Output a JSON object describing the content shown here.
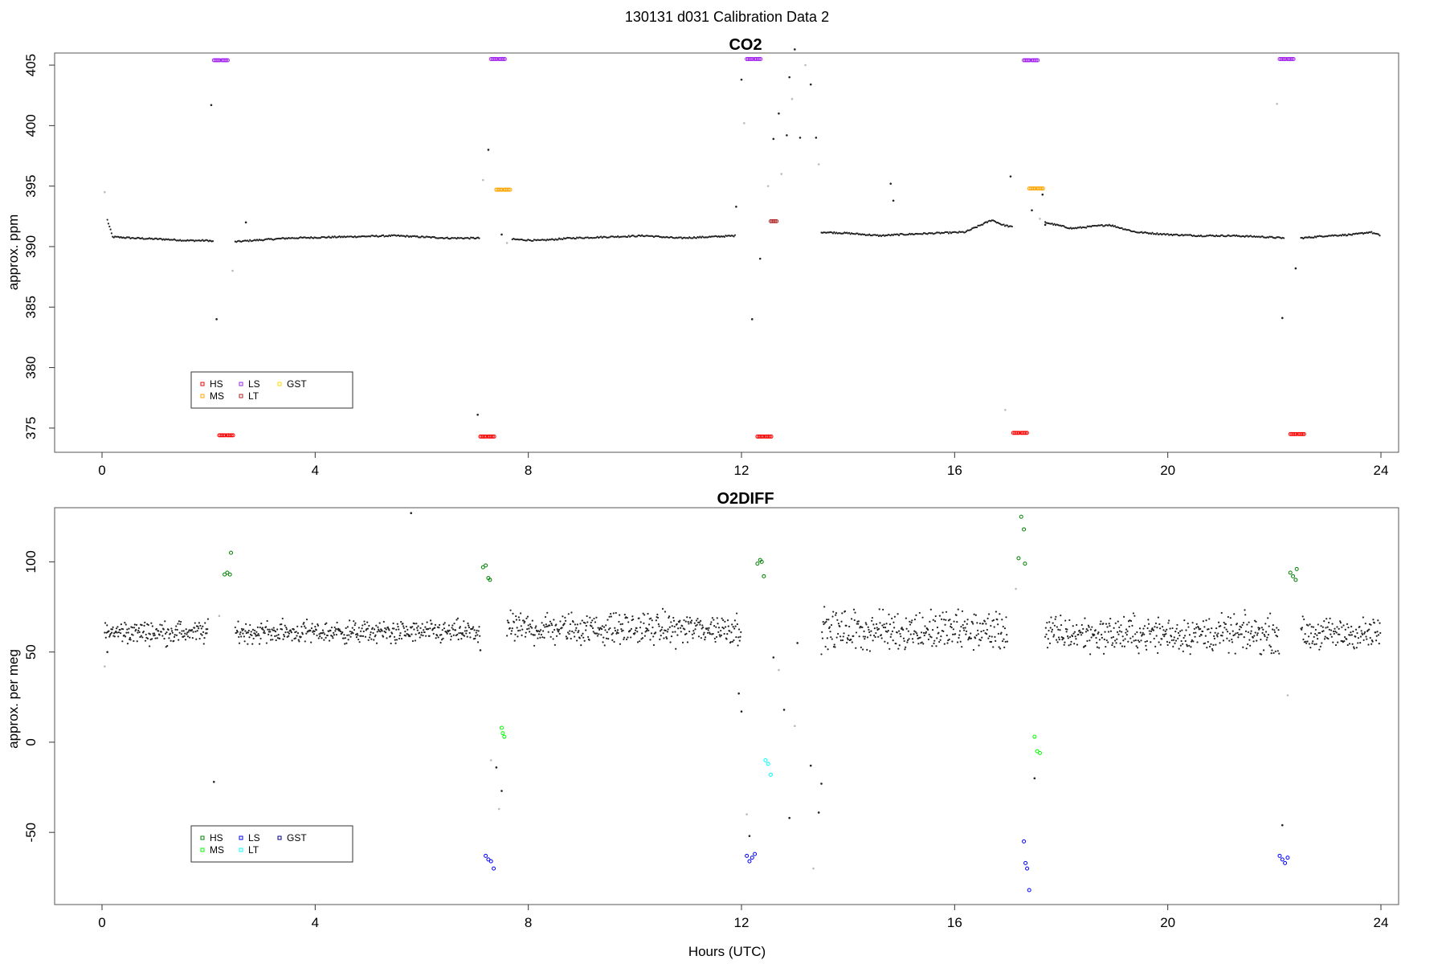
{
  "figure": {
    "title": "130131   d031   Calibration Data 2",
    "xlabel": "Hours (UTC)",
    "xlim": [
      0,
      24
    ],
    "xticks": [
      0,
      4,
      8,
      12,
      16,
      20,
      24
    ]
  },
  "colors": {
    "data": "#222222",
    "excluded": "#bbbbbb"
  },
  "chart_data": [
    {
      "type": "scatter",
      "title": "CO2",
      "ylabel": "approx. ppm",
      "xlabel": "",
      "xlim": [
        0,
        24
      ],
      "ylim": [
        373,
        406
      ],
      "yticks": [
        375,
        380,
        385,
        390,
        395,
        400,
        405
      ],
      "legend": {
        "placement": "bottom-left",
        "entries": [
          {
            "label": "HS",
            "color": "#ff0000"
          },
          {
            "label": "MS",
            "color": "#ffa500"
          },
          {
            "label": "LS",
            "color": "#a020f0"
          },
          {
            "label": "LT",
            "color": "#b22222"
          },
          {
            "label": "GST",
            "color": "#ffd700"
          }
        ]
      },
      "baseline_segments": [
        {
          "x": [
            0.1,
            0.2,
            0.6,
            1.2,
            1.6,
            2.0,
            2.1
          ],
          "y": [
            392.2,
            390.8,
            390.7,
            390.6,
            390.5,
            390.5,
            390.4
          ]
        },
        {
          "x": [
            2.5,
            2.8,
            3.5,
            4.5,
            5.5,
            6.0,
            6.5,
            7.1
          ],
          "y": [
            390.4,
            390.5,
            390.7,
            390.8,
            390.9,
            390.8,
            390.7,
            390.7
          ]
        },
        {
          "x": [
            7.7,
            8.2,
            8.8,
            9.5,
            10.2,
            10.8,
            11.4,
            11.9
          ],
          "y": [
            390.6,
            390.5,
            390.7,
            390.8,
            390.9,
            390.7,
            390.8,
            390.9
          ]
        },
        {
          "x": [
            13.5,
            14.0,
            14.6,
            15.0,
            15.6,
            16.2,
            16.7,
            16.9,
            17.1
          ],
          "y": [
            391.2,
            391.1,
            390.9,
            391.0,
            391.1,
            391.2,
            392.2,
            391.8,
            391.6
          ]
        },
        {
          "x": [
            17.7,
            18.2,
            18.9,
            19.4,
            20.0,
            20.6,
            21.2,
            21.8,
            22.2
          ],
          "y": [
            392.0,
            391.5,
            391.8,
            391.2,
            391.0,
            390.9,
            390.9,
            390.8,
            390.7
          ]
        },
        {
          "x": [
            22.5,
            23.0,
            23.5,
            23.8,
            24.0
          ],
          "y": [
            390.7,
            390.9,
            391.0,
            391.2,
            390.9
          ]
        }
      ],
      "series": [
        {
          "name": "HS",
          "color": "#ff0000",
          "x": [
            2.2,
            2.35,
            7.1,
            7.25,
            12.3,
            12.45,
            17.1,
            17.25,
            22.3,
            22.45
          ],
          "y": [
            374.4,
            374.4,
            374.3,
            374.3,
            374.3,
            374.3,
            374.6,
            374.6,
            374.5,
            374.5
          ]
        },
        {
          "name": "MS",
          "color": "#ffa500",
          "x": [
            7.4,
            7.55,
            17.4,
            17.55
          ],
          "y": [
            394.7,
            394.7,
            394.8,
            394.8
          ]
        },
        {
          "name": "LS",
          "color": "#a020f0",
          "x": [
            2.1,
            2.25,
            7.3,
            7.45,
            12.1,
            12.25,
            17.3,
            17.45,
            22.1,
            22.25
          ],
          "y": [
            405.4,
            405.4,
            405.5,
            405.5,
            405.5,
            405.5,
            405.4,
            405.4,
            405.5,
            405.5
          ]
        },
        {
          "name": "LT",
          "color": "#b22222",
          "x": [
            12.55
          ],
          "y": [
            392.1
          ]
        }
      ],
      "scatter_points": {
        "x": [
          0.05,
          2.05,
          2.15,
          2.45,
          2.7,
          7.05,
          7.15,
          7.25,
          7.5,
          7.6,
          11.9,
          12.0,
          12.05,
          12.2,
          12.35,
          12.5,
          12.6,
          12.7,
          12.75,
          12.85,
          12.9,
          12.95,
          13.0,
          13.1,
          13.2,
          13.3,
          13.4,
          13.45,
          14.8,
          14.85,
          16.95,
          17.05,
          17.45,
          17.6,
          17.65,
          17.7,
          22.05,
          22.15,
          22.4
        ],
        "y": [
          394.5,
          401.7,
          384.0,
          388.0,
          392.0,
          376.1,
          395.5,
          398.0,
          391.0,
          390.3,
          393.3,
          403.8,
          400.2,
          384.0,
          389.0,
          395.0,
          398.9,
          401.0,
          396.0,
          399.2,
          404.0,
          402.2,
          406.3,
          399.0,
          405.0,
          403.4,
          399.0,
          396.8,
          395.2,
          393.8,
          376.5,
          395.8,
          393.0,
          392.3,
          394.3,
          391.8,
          401.8,
          384.1,
          388.2
        ]
      }
    },
    {
      "type": "scatter",
      "title": "O2DIFF",
      "ylabel": "approx. per meg",
      "xlabel": "Hours (UTC)",
      "xlim": [
        0,
        24
      ],
      "ylim": [
        -90,
        130
      ],
      "yticks": [
        -50,
        0,
        50,
        100
      ],
      "legend": {
        "placement": "bottom-left",
        "entries": [
          {
            "label": "HS",
            "color": "#008000"
          },
          {
            "label": "MS",
            "color": "#00ff00"
          },
          {
            "label": "LS",
            "color": "#0000ff"
          },
          {
            "label": "LT",
            "color": "#00ffff"
          },
          {
            "label": "GST",
            "color": "#000080"
          }
        ]
      },
      "noise_segments": [
        {
          "x_range": [
            0.05,
            2.0
          ],
          "center": 61,
          "spread": 5
        },
        {
          "x_range": [
            2.5,
            7.1
          ],
          "center": 61,
          "spread": 5
        },
        {
          "x_range": [
            7.6,
            12.0
          ],
          "center": 63,
          "spread": 7
        },
        {
          "x_range": [
            13.5,
            17.0
          ],
          "center": 62,
          "spread": 9
        },
        {
          "x_range": [
            17.7,
            22.1
          ],
          "center": 60,
          "spread": 8
        },
        {
          "x_range": [
            22.5,
            24.0
          ],
          "center": 60,
          "spread": 7
        }
      ],
      "series": [
        {
          "name": "HS",
          "color": "#008000",
          "x": [
            2.3,
            2.35,
            2.4,
            2.42,
            7.15,
            7.2,
            7.25,
            7.28,
            12.3,
            12.35,
            12.38,
            12.42,
            17.2,
            17.25,
            17.3,
            17.32,
            22.3,
            22.35,
            22.4,
            22.42
          ],
          "y": [
            93,
            94,
            93,
            105,
            97,
            98,
            91,
            90,
            99,
            101,
            100,
            92,
            102,
            125,
            118,
            99,
            94,
            92,
            90,
            96
          ]
        },
        {
          "name": "MS",
          "color": "#00ff00",
          "x": [
            7.5,
            7.52,
            7.55,
            17.5,
            17.55,
            17.6
          ],
          "y": [
            8,
            5,
            3,
            3,
            -5,
            -6
          ]
        },
        {
          "name": "LS",
          "color": "#0000ff",
          "x": [
            7.2,
            7.25,
            7.3,
            7.35,
            12.1,
            12.15,
            12.2,
            12.25,
            17.3,
            17.33,
            17.36,
            17.4,
            22.1,
            22.15,
            22.2,
            22.25
          ],
          "y": [
            -63,
            -65,
            -66,
            -70,
            -63,
            -66,
            -64,
            -62,
            -55,
            -67,
            -70,
            -82,
            -63,
            -65,
            -67,
            -64
          ]
        },
        {
          "name": "LT",
          "color": "#00ffff",
          "x": [
            12.45,
            12.5,
            12.55
          ],
          "y": [
            -10,
            -12,
            -18
          ]
        }
      ],
      "scatter_points": {
        "x": [
          0.05,
          0.1,
          2.1,
          2.2,
          5.8,
          7.1,
          7.45,
          7.5,
          7.4,
          7.3,
          11.95,
          12.0,
          12.1,
          12.15,
          12.6,
          12.7,
          12.8,
          12.9,
          13.0,
          13.05,
          13.3,
          13.35,
          13.45,
          13.5,
          17.15,
          17.5,
          22.15,
          22.25
        ],
        "y": [
          42,
          50,
          -22,
          70,
          127,
          51,
          -37,
          -27,
          -14,
          -10,
          27,
          17,
          -40,
          -52,
          47,
          40,
          18,
          -42,
          9,
          55,
          -13,
          -70,
          -39,
          -23,
          85,
          -20,
          -46,
          26
        ]
      }
    }
  ]
}
